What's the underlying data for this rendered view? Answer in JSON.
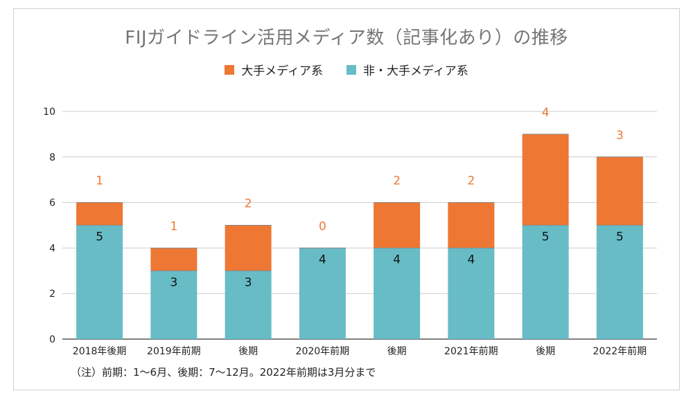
{
  "chart_data": {
    "type": "bar",
    "stacked": true,
    "title": "FIJガイドライン活用メディア数（記事化あり）の推移",
    "categories": [
      "2018年後期",
      "2019年前期",
      "後期",
      "2020年前期",
      "後期",
      "2021年前期",
      "後期",
      "2022年前期"
    ],
    "series": [
      {
        "name": "非・大手メディア系",
        "color": "#67BCC6",
        "values": [
          5,
          3,
          3,
          4,
          4,
          4,
          5,
          5
        ]
      },
      {
        "name": "大手メディア系",
        "color": "#EE7733",
        "values": [
          1,
          1,
          2,
          0,
          2,
          2,
          4,
          3
        ]
      }
    ],
    "ylim": [
      0,
      10
    ],
    "yticks": [
      0,
      2,
      4,
      6,
      8,
      10
    ],
    "grid": true,
    "legend": "top-center"
  },
  "footnote": "（注）前期：1〜6月、後期：7〜12月。2022年前期は3月分まで"
}
